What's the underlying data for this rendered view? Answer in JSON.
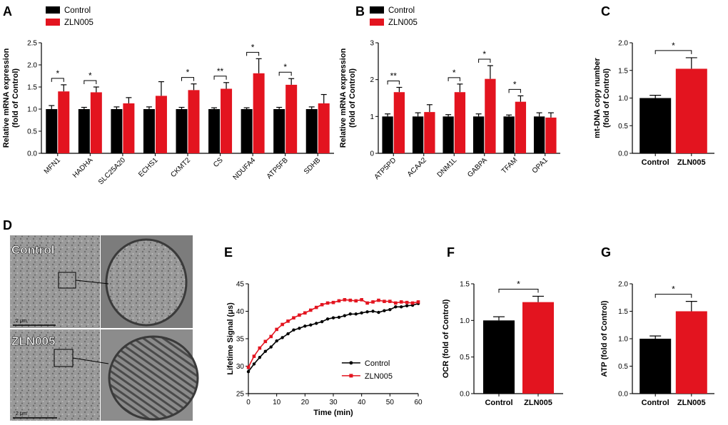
{
  "colors": {
    "control": "#000000",
    "zln": "#e3141f",
    "axis": "#000000"
  },
  "chart_data": [
    {
      "panel": "A",
      "type": "bar",
      "ylabel": [
        "Relative mRNA expression",
        "(fold of Control)"
      ],
      "yticks": [
        "0.0",
        "0.5",
        "1.0",
        "1.5",
        "2.0",
        "2.5"
      ],
      "ylim": [
        0,
        2.5
      ],
      "legend": [
        "Control",
        "ZLN005"
      ],
      "categories": [
        "MFN1",
        "HADHA",
        "SLC25A20",
        "ECHS1",
        "CKMT2",
        "CS",
        "NDUFA4",
        "ATP5FB",
        "SDHB"
      ],
      "series": [
        {
          "name": "Control",
          "values": [
            1.0,
            1.0,
            1.0,
            1.0,
            1.0,
            1.0,
            1.0,
            1.0,
            1.0
          ],
          "errors": [
            0.08,
            0.04,
            0.05,
            0.05,
            0.04,
            0.03,
            0.03,
            0.04,
            0.05
          ]
        },
        {
          "name": "ZLN005",
          "values": [
            1.4,
            1.38,
            1.13,
            1.3,
            1.43,
            1.46,
            1.81,
            1.55,
            1.13
          ],
          "errors": [
            0.15,
            0.12,
            0.13,
            0.32,
            0.14,
            0.14,
            0.33,
            0.14,
            0.2
          ]
        }
      ],
      "significance": [
        {
          "index": 0,
          "label": "*"
        },
        {
          "index": 1,
          "label": "*"
        },
        {
          "index": 4,
          "label": "*"
        },
        {
          "index": 5,
          "label": "**"
        },
        {
          "index": 6,
          "label": "*"
        },
        {
          "index": 7,
          "label": "*"
        }
      ]
    },
    {
      "panel": "B",
      "type": "bar",
      "ylabel": [
        "Relative mRNA expression",
        "(fold of Control)"
      ],
      "yticks": [
        "0",
        "1",
        "2",
        "3"
      ],
      "ylim": [
        0,
        3
      ],
      "legend": [
        "Control",
        "ZLN005"
      ],
      "categories": [
        "ATP5PD",
        "ACAA2",
        "DNM1L",
        "GABPA",
        "TFAM",
        "OPA1"
      ],
      "series": [
        {
          "name": "Control",
          "values": [
            1.0,
            1.0,
            1.0,
            1.0,
            1.0,
            1.0
          ],
          "errors": [
            0.07,
            0.1,
            0.05,
            0.07,
            0.04,
            0.1
          ]
        },
        {
          "name": "ZLN005",
          "values": [
            1.66,
            1.12,
            1.66,
            2.02,
            1.4,
            0.97
          ],
          "errors": [
            0.13,
            0.2,
            0.22,
            0.36,
            0.16,
            0.13
          ]
        }
      ],
      "significance": [
        {
          "index": 0,
          "label": "**"
        },
        {
          "index": 2,
          "label": "*"
        },
        {
          "index": 3,
          "label": "*"
        },
        {
          "index": 4,
          "label": "*"
        }
      ]
    },
    {
      "panel": "C",
      "type": "bar",
      "ylabel": [
        "mt-DNA copy number",
        "(fold of Control)"
      ],
      "yticks": [
        "0.0",
        "0.5",
        "1.0",
        "1.5",
        "2.0"
      ],
      "ylim": [
        0,
        2
      ],
      "categories": [
        "Control",
        "ZLN005"
      ],
      "values": [
        1.0,
        1.53
      ],
      "errors": [
        0.05,
        0.2
      ],
      "significance": "*"
    },
    {
      "panel": "E",
      "type": "line",
      "xlabel": "Time (min)",
      "ylabel": "Lifetime Signal (μs)",
      "xticks": [
        "0",
        "10",
        "20",
        "30",
        "40",
        "50",
        "60"
      ],
      "yticks": [
        "25",
        "30",
        "35",
        "40",
        "45"
      ],
      "xlim": [
        0,
        60
      ],
      "ylim": [
        25,
        45
      ],
      "series": [
        {
          "name": "Control",
          "x": [
            0,
            2,
            4,
            6,
            8,
            10,
            12,
            14,
            16,
            18,
            20,
            22,
            24,
            26,
            28,
            30,
            32,
            34,
            36,
            38,
            40,
            42,
            44,
            46,
            48,
            50,
            52,
            54,
            56,
            58,
            60
          ],
          "y": [
            29.0,
            30.4,
            31.6,
            32.7,
            33.5,
            34.6,
            35.2,
            35.9,
            36.6,
            36.9,
            37.3,
            37.5,
            37.8,
            38.1,
            38.6,
            38.8,
            38.9,
            39.2,
            39.5,
            39.5,
            39.7,
            39.9,
            40.0,
            39.8,
            40.1,
            40.3,
            40.8,
            40.8,
            41.0,
            41.1,
            41.4
          ]
        },
        {
          "name": "ZLN005",
          "x": [
            0,
            2,
            4,
            6,
            8,
            10,
            12,
            14,
            16,
            18,
            20,
            22,
            24,
            26,
            28,
            30,
            32,
            34,
            36,
            38,
            40,
            42,
            44,
            46,
            48,
            50,
            52,
            54,
            56,
            58,
            60
          ],
          "y": [
            29.8,
            31.8,
            33.3,
            34.5,
            35.4,
            36.7,
            37.6,
            38.2,
            38.8,
            39.3,
            39.7,
            40.2,
            40.7,
            41.2,
            41.5,
            41.6,
            41.9,
            42.1,
            42.0,
            41.9,
            42.1,
            41.5,
            41.7,
            42.0,
            41.8,
            41.8,
            41.5,
            41.7,
            41.6,
            41.5,
            41.7
          ]
        }
      ]
    },
    {
      "panel": "F",
      "type": "bar",
      "ylabel": "OCR (fold of Control)",
      "yticks": [
        "0.0",
        "0.5",
        "1.0",
        "1.5"
      ],
      "ylim": [
        0,
        1.5
      ],
      "categories": [
        "Control",
        "ZLN005"
      ],
      "values": [
        1.0,
        1.25
      ],
      "errors": [
        0.05,
        0.08
      ],
      "significance": "*"
    },
    {
      "panel": "G",
      "type": "bar",
      "ylabel": "ATP  (fold of Control)",
      "yticks": [
        "0.0",
        "0.5",
        "1.0",
        "1.5",
        "2.0"
      ],
      "ylim": [
        0,
        2
      ],
      "categories": [
        "Control",
        "ZLN005"
      ],
      "values": [
        1.0,
        1.5
      ],
      "errors": [
        0.05,
        0.18
      ],
      "significance": "*"
    }
  ],
  "panel_d": {
    "letter": "D",
    "top_label": "Control",
    "bottom_label": "ZLN005",
    "scale_top": "2 μm",
    "scale_bottom": "2 μm"
  },
  "panel_letters": [
    "A",
    "B",
    "C",
    "D",
    "E",
    "F",
    "G"
  ]
}
